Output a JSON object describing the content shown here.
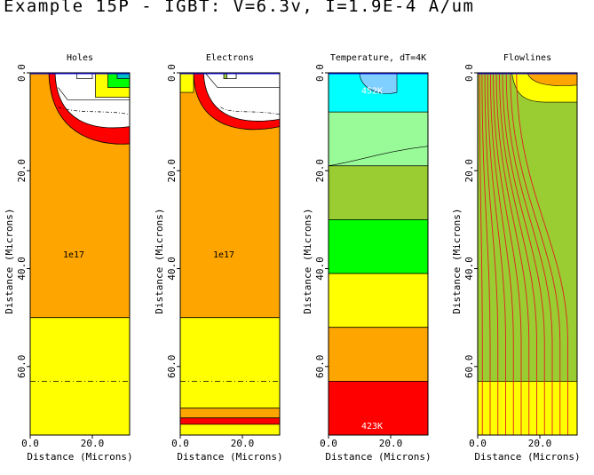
{
  "title": "Example 15P - IGBT:  V=6.3v, I=1.9E-4 A/um",
  "chart_data": [
    {
      "type": "heatmap",
      "title": "Holes",
      "xlabel": "Distance (Microns)",
      "ylabel": "Distance (Microns)",
      "x_ticks": [
        "0.0",
        "20.0"
      ],
      "y_ticks": [
        "0.0",
        "20.0",
        "40.0",
        "60.0"
      ],
      "xlim": [
        0,
        32
      ],
      "ylim": [
        0,
        74
      ],
      "annotations": [
        {
          "text": "1e17",
          "x": 14,
          "y": 37
        }
      ],
      "bands": [
        {
          "from": 0,
          "to": 50,
          "color": "#ffa500"
        },
        {
          "from": 50,
          "to": 74,
          "color": "#ffff00"
        }
      ],
      "junction_depth": 63
    },
    {
      "type": "heatmap",
      "title": "Electrons",
      "xlabel": "Distance (Microns)",
      "ylabel": "Distance (Microns)",
      "x_ticks": [
        "0.0",
        "20.0"
      ],
      "y_ticks": [
        "0.0",
        "20.0",
        "40.0",
        "60.0"
      ],
      "xlim": [
        0,
        32
      ],
      "ylim": [
        0,
        74
      ],
      "annotations": [
        {
          "text": "1e17",
          "x": 14,
          "y": 37
        }
      ],
      "bands": [
        {
          "from": 0,
          "to": 50,
          "color": "#ffa500"
        },
        {
          "from": 50,
          "to": 68.5,
          "color": "#ffff00"
        },
        {
          "from": 68.5,
          "to": 70.5,
          "color": "#ffa500"
        },
        {
          "from": 70.5,
          "to": 71.8,
          "color": "#ff0000"
        },
        {
          "from": 71.8,
          "to": 74,
          "color": "#ffff00"
        }
      ],
      "junction_depth": 63
    },
    {
      "type": "heatmap",
      "title": "Temperature, dT=4K",
      "xlabel": "Distance (Microns)",
      "ylabel": "Distance (Microns)",
      "x_ticks": [
        "0.0",
        "20.0"
      ],
      "y_ticks": [
        "0.0",
        "20.0",
        "40.0",
        "60.0"
      ],
      "xlim": [
        0,
        32
      ],
      "ylim": [
        0,
        74
      ],
      "annotations": [
        {
          "text": "452K",
          "x": 14,
          "y": 3.5
        },
        {
          "text": "423K",
          "x": 14,
          "y": 72
        }
      ],
      "bands": [
        {
          "from": 0,
          "to": 8,
          "color": "#00ffff"
        },
        {
          "from": 8,
          "to": 19,
          "color": "#98fb98"
        },
        {
          "from": 19,
          "to": 30,
          "color": "#9acd32"
        },
        {
          "from": 30,
          "to": 41,
          "color": "#00ff00"
        },
        {
          "from": 41,
          "to": 52,
          "color": "#ffff00"
        },
        {
          "from": 52,
          "to": 63,
          "color": "#ffa500"
        },
        {
          "from": 63,
          "to": 74,
          "color": "#ff0000"
        }
      ]
    },
    {
      "type": "heatmap",
      "title": "Flowlines",
      "xlabel": "Distance (Microns)",
      "ylabel": "Distance (Microns)",
      "x_ticks": [
        "0.0",
        "20.0"
      ],
      "y_ticks": [
        "0.0",
        "20.0",
        "40.0",
        "60.0"
      ],
      "xlim": [
        0,
        32
      ],
      "ylim": [
        0,
        74
      ],
      "bands": [
        {
          "from": 0,
          "to": 63,
          "color": "#9acd32"
        },
        {
          "from": 63,
          "to": 74,
          "color": "#ffff00"
        }
      ],
      "flowline_top_x": [
        0.6,
        1.4,
        2.3,
        3.2,
        4.1,
        5.0,
        6.0,
        7.0,
        8.0,
        9.2,
        10.5,
        12.5
      ],
      "flowline_bottom_x": [
        1.5,
        4.0,
        6.5,
        9.0,
        11.5,
        14.0,
        16.5,
        19.0,
        21.5,
        24.0,
        26.5,
        29.0
      ],
      "flowline_color": "#e02020"
    }
  ]
}
